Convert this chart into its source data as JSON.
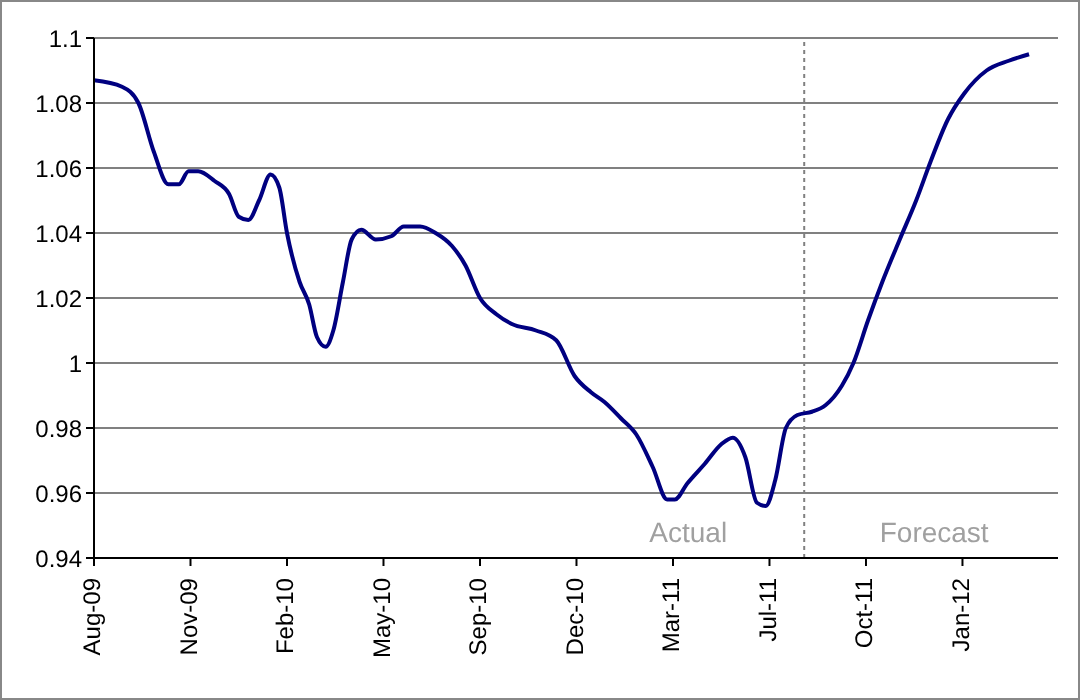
{
  "chart_data": {
    "type": "line",
    "x": [
      "2009-08-01",
      "2009-08-30",
      "2009-09-16",
      "2009-10-02",
      "2009-10-17",
      "2009-10-28",
      "2009-11-07",
      "2009-11-17",
      "2009-12-04",
      "2009-12-19",
      "2009-12-29",
      "2010-01-08",
      "2010-01-19",
      "2010-01-31",
      "2010-02-09",
      "2010-02-17",
      "2010-03-02",
      "2010-03-12",
      "2010-03-20",
      "2010-03-29",
      "2010-04-06",
      "2010-04-16",
      "2010-04-25",
      "2010-05-05",
      "2010-05-20",
      "2010-06-05",
      "2010-06-18",
      "2010-07-05",
      "2010-07-21",
      "2010-08-07",
      "2010-08-21",
      "2010-09-05",
      "2010-09-22",
      "2010-10-08",
      "2010-11-02",
      "2010-11-23",
      "2010-12-12",
      "2010-12-29",
      "2011-01-12",
      "2011-01-29",
      "2011-02-14",
      "2011-03-03",
      "2011-03-18",
      "2011-03-26",
      "2011-04-08",
      "2011-04-26",
      "2011-05-13",
      "2011-05-25",
      "2011-06-07",
      "2011-06-19",
      "2011-06-28",
      "2011-07-08",
      "2011-07-19",
      "2011-07-31",
      "2011-08-15",
      "2011-08-29",
      "2011-09-15",
      "2011-09-27",
      "2011-10-12",
      "2011-10-27",
      "2011-11-14",
      "2011-12-01",
      "2011-12-16",
      "2012-01-03",
      "2012-01-20",
      "2012-02-12",
      "2012-03-06",
      "2012-03-27"
    ],
    "series": [
      {
        "color": "#000080",
        "values": [
          1.087,
          1.085,
          1.08,
          1.065,
          1.055,
          1.055,
          1.059,
          1.059,
          1.056,
          1.052,
          1.045,
          1.044,
          1.05,
          1.058,
          1.054,
          1.04,
          1.025,
          1.018,
          1.008,
          1.005,
          1.01,
          1.025,
          1.038,
          1.041,
          1.038,
          1.039,
          1.042,
          1.042,
          1.04,
          1.036,
          1.03,
          1.02,
          1.015,
          1.012,
          1.01,
          1.007,
          0.996,
          0.991,
          0.988,
          0.983,
          0.978,
          0.968,
          0.958,
          0.958,
          0.963,
          0.969,
          0.975,
          0.977,
          0.971,
          0.957,
          0.956,
          0.964,
          0.98,
          0.984,
          0.985,
          0.987,
          0.993,
          1.0,
          1.013,
          1.025,
          1.038,
          1.05,
          1.062,
          1.075,
          1.083,
          1.09,
          1.093,
          1.095
        ]
      }
    ],
    "xlim": [
      "2009-08-01",
      "2012-04-26"
    ],
    "xticks": [
      {
        "value": "2009-08-01",
        "label": "Aug-09"
      },
      {
        "value": "2009-11-09",
        "label": "Nov-09"
      },
      {
        "value": "2010-02-17",
        "label": "Feb-10"
      },
      {
        "value": "2010-05-28",
        "label": "May-10"
      },
      {
        "value": "2010-09-05",
        "label": "Sep-10"
      },
      {
        "value": "2010-12-14",
        "label": "Dec-10"
      },
      {
        "value": "2011-03-24",
        "label": "Mar-11"
      },
      {
        "value": "2011-07-02",
        "label": "Jul-11"
      },
      {
        "value": "2011-10-10",
        "label": "Oct-11"
      },
      {
        "value": "2012-01-18",
        "label": "Jan-12"
      }
    ],
    "ylim": [
      0.94,
      1.1
    ],
    "yticks": [
      0.94,
      0.96,
      0.98,
      1,
      1.02,
      1.04,
      1.06,
      1.08,
      1.1
    ],
    "grid": "y",
    "legend": false,
    "marker": "none",
    "line_style": "solid",
    "ref_lines": [
      {
        "axis": "x",
        "value": "2011-08-07",
        "color": "#808080",
        "line_style": "dotted"
      }
    ],
    "annotations": [
      "Actual",
      "Forecast"
    ]
  }
}
